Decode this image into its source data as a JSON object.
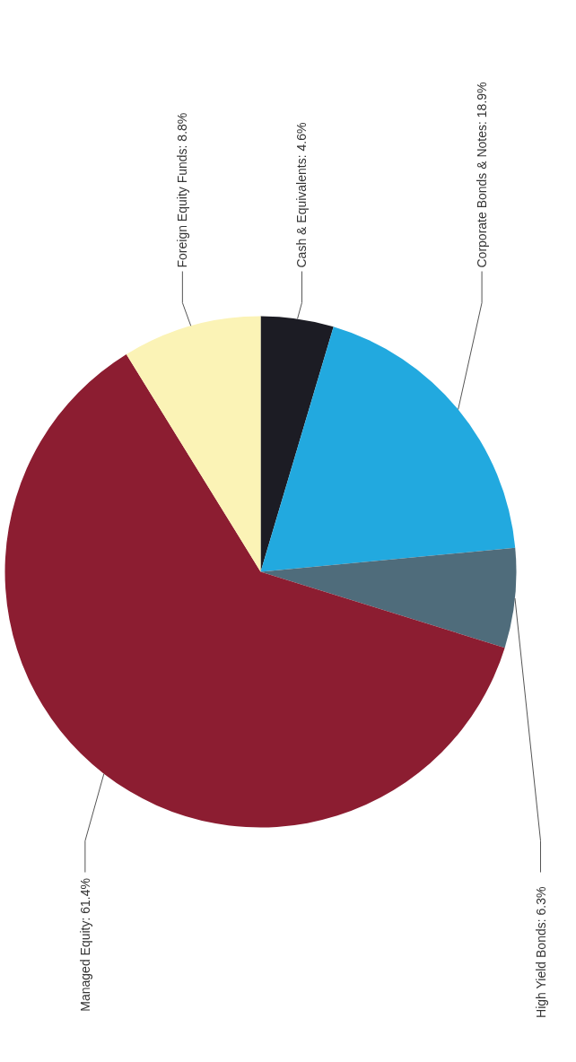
{
  "chart_data": {
    "type": "pie",
    "categories": [
      "Cash & Equivalents",
      "Corporate Bonds & Notes",
      "High Yield Bonds",
      "Managed Equity",
      "Foreign Equity Funds"
    ],
    "values": [
      4.6,
      18.9,
      6.3,
      61.4,
      8.8
    ],
    "colors": [
      "#1c1c24",
      "#22a9df",
      "#4f6c7b",
      "#8c1d31",
      "#fbf3b6"
    ],
    "value_labels": [
      ": 4.6%",
      ": 18.9%",
      ": 6.3%",
      ": 61.4%",
      ": 8.8%"
    ]
  }
}
